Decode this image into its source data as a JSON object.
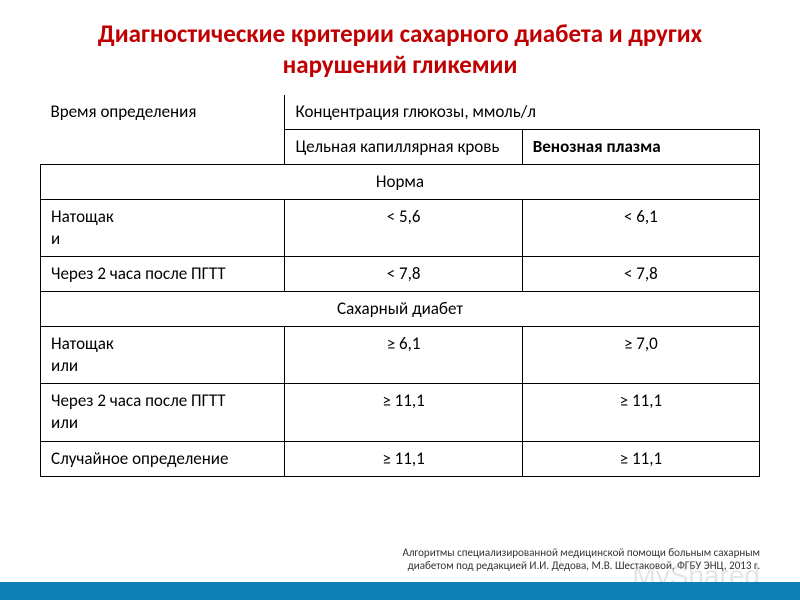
{
  "title": "Диагностические критерии сахарного диабета и других нарушений гликемии",
  "headers": {
    "time_col": "Время определения",
    "concentration": "Концентрация глюкозы, ммоль/л",
    "capillary": "Цельная капиллярная кровь",
    "venous": "Венозная плазма"
  },
  "sections": {
    "normal": "Норма",
    "diabetes": "Сахарный диабет"
  },
  "rows": {
    "fasting_and": "Натощак\nи",
    "after_pgtt": "Через 2 часа после ПГТТ",
    "fasting_or": "Натощак\nили",
    "after_pgtt_or": "Через 2 часа после ПГТТ\nили",
    "random": "Случайное определение"
  },
  "values": {
    "norm_fasting_cap": "< 5,6",
    "norm_fasting_ven": "< 6,1",
    "norm_pgtt_cap": "< 7,8",
    "norm_pgtt_ven": "< 7,8",
    "dm_fasting_cap": "≥ 6,1",
    "dm_fasting_ven": "≥ 7,0",
    "dm_pgtt_cap": "≥ 11,1",
    "dm_pgtt_ven": "≥ 11,1",
    "dm_random_cap": "≥ 11,1",
    "dm_random_ven": "≥ 11,1"
  },
  "footer": "Алгоритмы специализированной медицинской помощи больным сахарным\nдиабетом под редакцией И.И. Дедова, М.В. Шестаковой, ФГБУ ЭНЦ, 2013 г.",
  "watermark": "MyShared",
  "colors": {
    "title": "#c00000",
    "border": "#000000",
    "bottom_bar": "#0e7fb3"
  }
}
